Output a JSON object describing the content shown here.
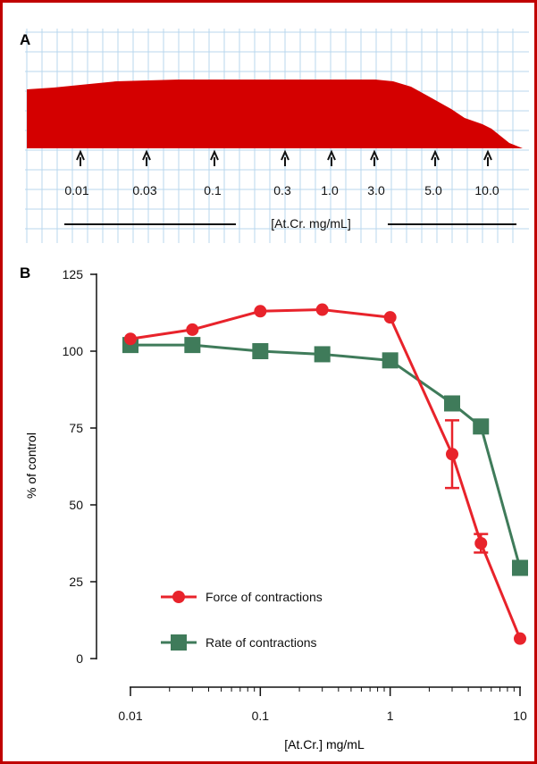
{
  "colors": {
    "border": "#c00000",
    "trace": "#d40000",
    "grid": "#b9d7ee",
    "force": "#e8232b",
    "rate": "#3f7b5a",
    "text": "#111111"
  },
  "panelA": {
    "label": "A",
    "doses": [
      "0.01",
      "0.03",
      "0.1",
      "0.3",
      "1.0",
      "3.0",
      "5.0",
      "10.0"
    ],
    "caption": "[At.Cr. mg/mL]"
  },
  "panelB": {
    "label": "B"
  },
  "chart_data": {
    "type": "line",
    "title": "",
    "xlabel": "[At.Cr.] mg/mL",
    "ylabel": "% of control",
    "xscale": "log",
    "xlim": [
      0.01,
      10
    ],
    "ylim": [
      0,
      125
    ],
    "x_ticks": [
      "0.01",
      "0.1",
      "1",
      "10"
    ],
    "y_ticks": [
      "0",
      "25",
      "50",
      "75",
      "100",
      "125"
    ],
    "grid": false,
    "legend_position": "bottom-left",
    "series": [
      {
        "name": "Force of contractions",
        "marker": "circle",
        "x": [
          0.01,
          0.03,
          0.1,
          0.3,
          1,
          3,
          5,
          10
        ],
        "y": [
          104,
          107,
          113,
          113.5,
          111,
          66.5,
          37.5,
          6.5
        ],
        "err": [
          0,
          0,
          0,
          0,
          0,
          11,
          3,
          0
        ]
      },
      {
        "name": "Rate of contractions",
        "marker": "square",
        "x": [
          0.01,
          0.03,
          0.1,
          0.3,
          1,
          3,
          5,
          10
        ],
        "y": [
          102,
          102,
          100,
          99,
          97,
          83,
          75.5,
          29.5
        ],
        "err": [
          0,
          0,
          0,
          0,
          0,
          2,
          0,
          0
        ]
      }
    ]
  }
}
